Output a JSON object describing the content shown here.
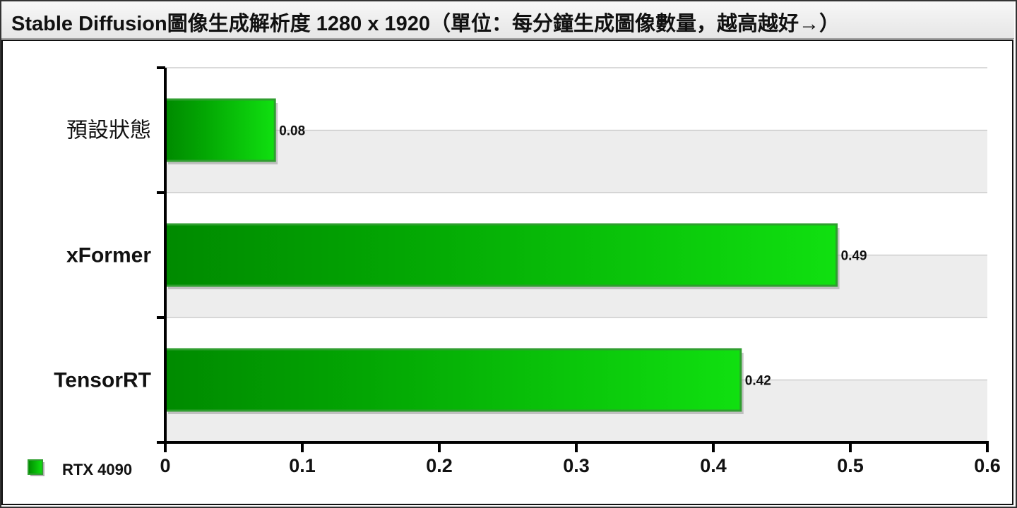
{
  "chart_data": {
    "type": "bar",
    "orientation": "horizontal",
    "title": "Stable Diffusion圖像生成解析度 1280 x 1920（單位：每分鐘生成圖像數量，越高越好→）",
    "categories": [
      "預設狀態",
      "xFormer",
      "TensorRT"
    ],
    "category_bold": [
      false,
      true,
      true
    ],
    "series": [
      {
        "name": "RTX 4090",
        "values": [
          0.08,
          0.49,
          0.42
        ],
        "color": "#11cc11"
      }
    ],
    "data_labels": [
      "0.08",
      "0.49",
      "0.42"
    ],
    "xlim": [
      0,
      0.6
    ],
    "x_ticks": [
      0,
      0.1,
      0.2,
      0.3,
      0.4,
      0.5,
      0.6
    ],
    "x_tick_labels": [
      "0",
      "0.1",
      "0.2",
      "0.3",
      "0.4",
      "0.5",
      "0.6"
    ],
    "xlabel": "",
    "ylabel": "",
    "grid": true,
    "legend_position": "bottom-left"
  }
}
